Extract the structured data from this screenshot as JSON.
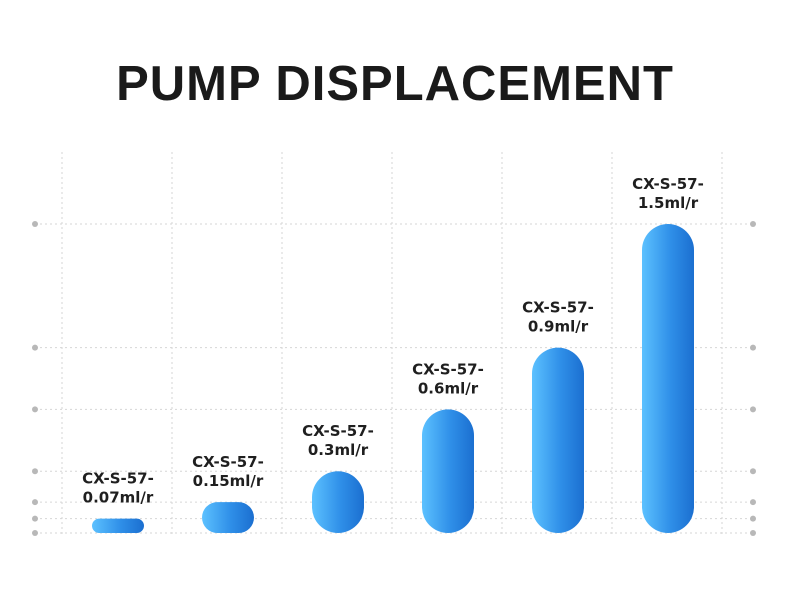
{
  "title": "PUMP DISPLACEMENT",
  "chart_data": {
    "type": "bar",
    "title": "PUMP DISPLACEMENT",
    "categories": [
      [
        "CX-S-57-",
        "0.07ml/r"
      ],
      [
        "CX-S-57-",
        "0.15ml/r"
      ],
      [
        "CX-S-57-",
        "0.3ml/r"
      ],
      [
        "CX-S-57-",
        "0.6ml/r"
      ],
      [
        "CX-S-57-",
        "0.9ml/r"
      ],
      [
        "CX-S-57-",
        "1.5ml/r"
      ]
    ],
    "values": [
      0.07,
      0.15,
      0.3,
      0.6,
      0.9,
      1.5
    ],
    "unit": "ml/r",
    "ylim": [
      0,
      1.5
    ],
    "grid": true,
    "axis_markers": [
      0,
      0.07,
      0.15,
      0.3,
      0.6,
      0.9,
      1.5
    ],
    "colors": {
      "bar_light": "#5cc1ff",
      "bar_mid": "#2f8fe8",
      "bar_dark": "#1b6fd0",
      "grid": "#d6d6d6",
      "marker": "#b8b8b8",
      "text": "#1f1f1f"
    }
  }
}
